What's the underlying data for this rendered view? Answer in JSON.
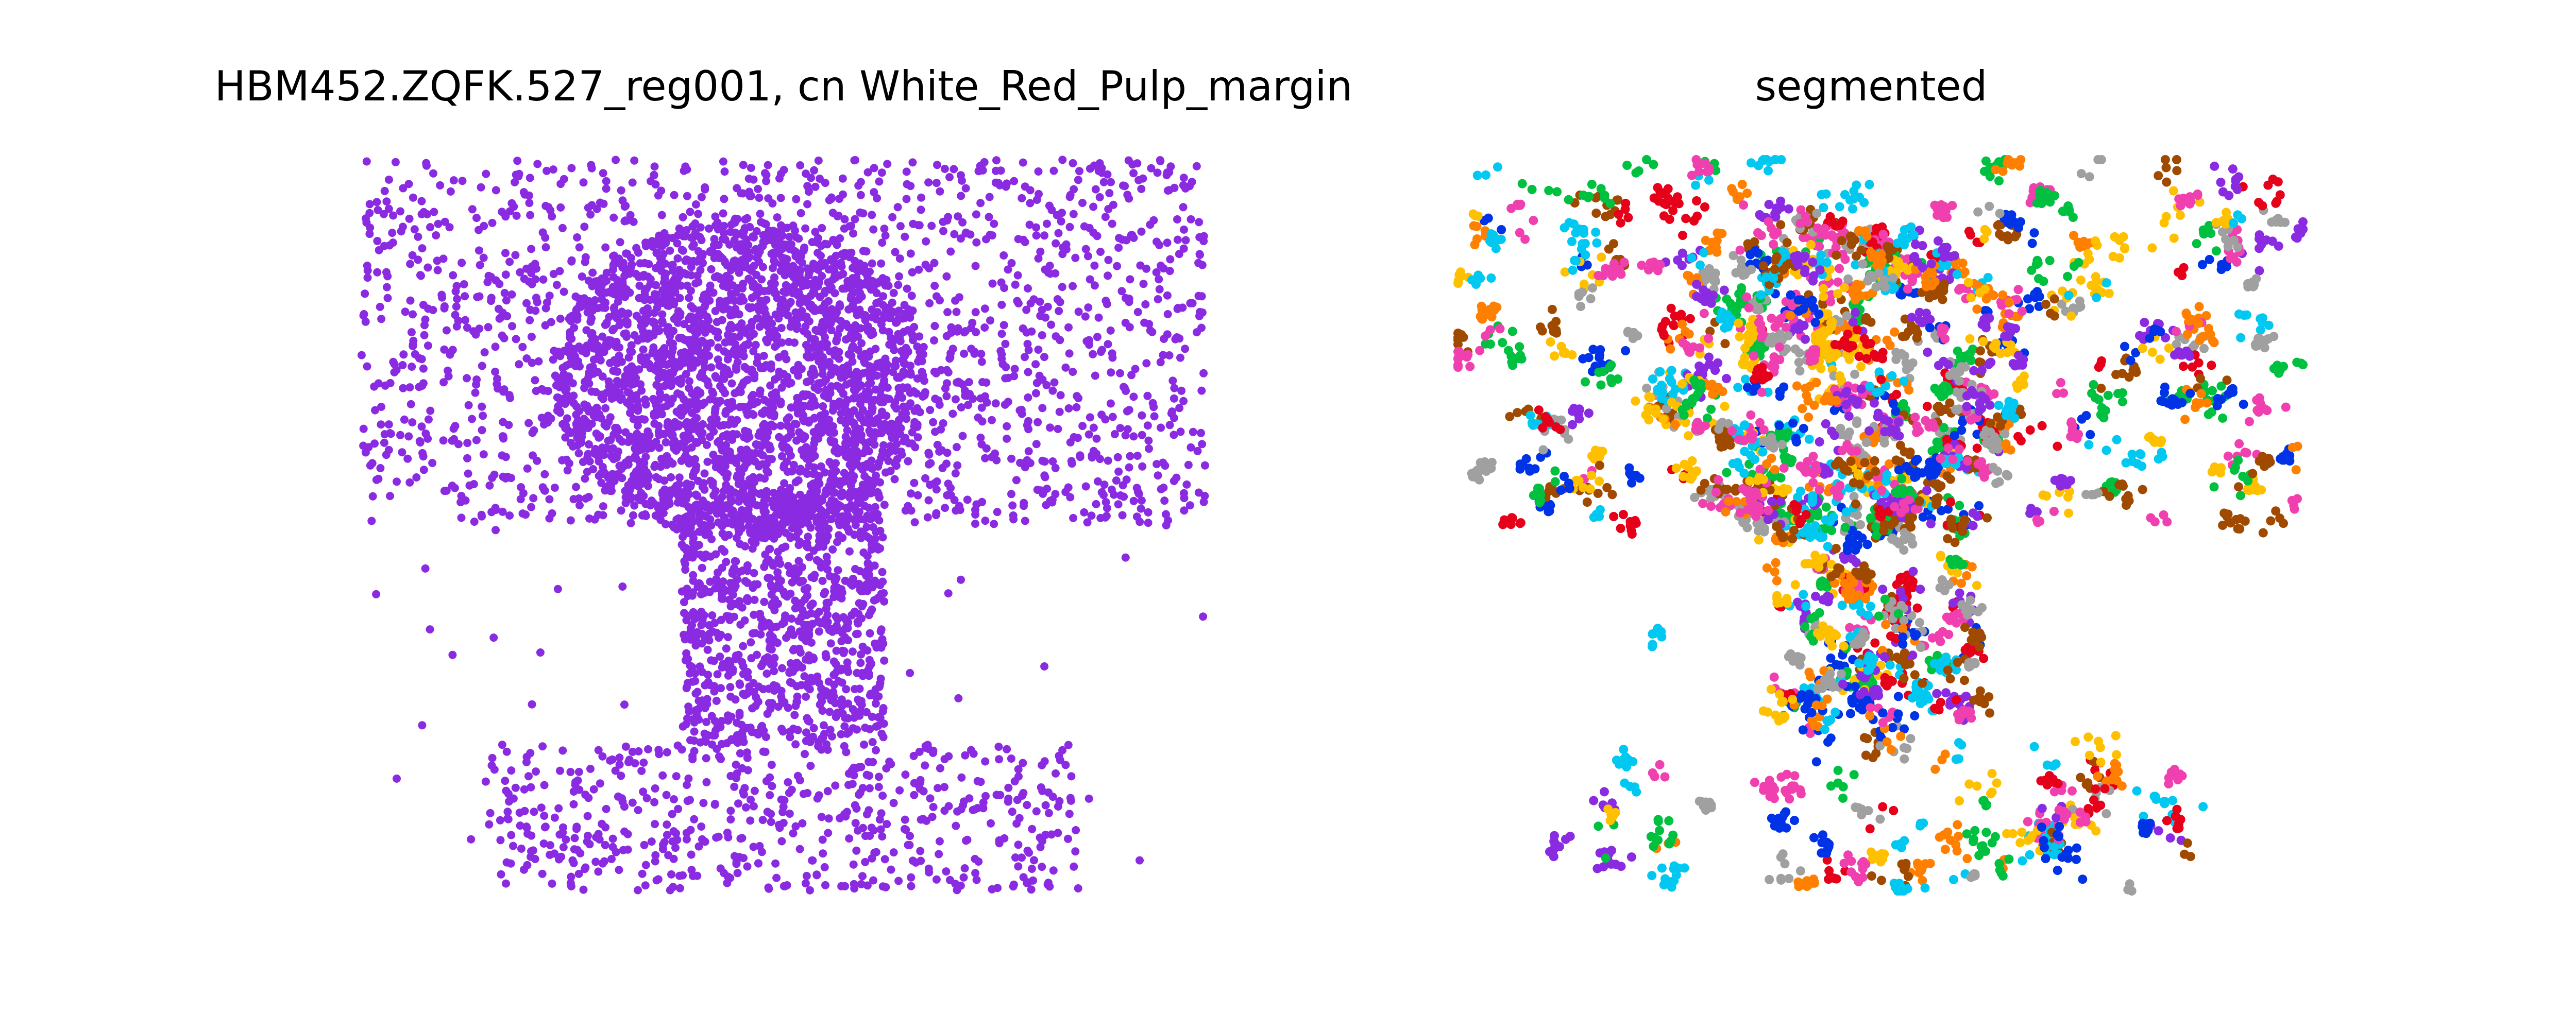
{
  "figure": {
    "background": "#ffffff"
  },
  "chart_data": [
    {
      "type": "scatter",
      "title": "HBM452.ZQFK.527_reg001, cn White_Red_Pulp_margin",
      "axes_visible": false,
      "grid": false,
      "xlim": [
        0,
        1
      ],
      "ylim": [
        0,
        1
      ],
      "point_color": "#8a2be2",
      "approx_point_count": 5200,
      "density_regions": [
        {
          "shape": "rect",
          "x": [
            0.0,
            1.0
          ],
          "y": [
            0.5,
            1.0
          ],
          "weight": 3.0
        },
        {
          "shape": "ellipse",
          "cx": 0.45,
          "cy": 0.7,
          "rx": 0.22,
          "ry": 0.22,
          "weight": 3.5
        },
        {
          "shape": "rect",
          "x": [
            0.38,
            0.62
          ],
          "y": [
            0.2,
            0.55
          ],
          "weight": 1.6
        },
        {
          "shape": "rect",
          "x": [
            0.15,
            0.85
          ],
          "y": [
            0.0,
            0.2
          ],
          "weight": 0.9
        },
        {
          "shape": "rect",
          "x": [
            0.0,
            1.0
          ],
          "y": [
            0.0,
            1.0
          ],
          "weight": 0.15
        }
      ]
    },
    {
      "type": "scatter",
      "title": "segmented",
      "axes_visible": false,
      "grid": false,
      "xlim": [
        0,
        1
      ],
      "ylim": [
        0,
        1
      ],
      "approx_cluster_count": 640,
      "palette": [
        "#e6001a",
        "#0033e6",
        "#00c040",
        "#ffc000",
        "#8a2be2",
        "#ff8000",
        "#00c8f0",
        "#a0a0a0",
        "#a04a00",
        "#f040b0"
      ],
      "density_regions": [
        {
          "shape": "rect",
          "x": [
            0.0,
            1.0
          ],
          "y": [
            0.5,
            1.0
          ],
          "weight": 3.0
        },
        {
          "shape": "ellipse",
          "cx": 0.45,
          "cy": 0.7,
          "rx": 0.22,
          "ry": 0.22,
          "weight": 3.0
        },
        {
          "shape": "rect",
          "x": [
            0.38,
            0.62
          ],
          "y": [
            0.2,
            0.55
          ],
          "weight": 1.6
        },
        {
          "shape": "rect",
          "x": [
            0.15,
            0.85
          ],
          "y": [
            0.0,
            0.2
          ],
          "weight": 0.9
        },
        {
          "shape": "rect",
          "x": [
            0.0,
            1.0
          ],
          "y": [
            0.0,
            1.0
          ],
          "weight": 0.12
        }
      ]
    }
  ]
}
